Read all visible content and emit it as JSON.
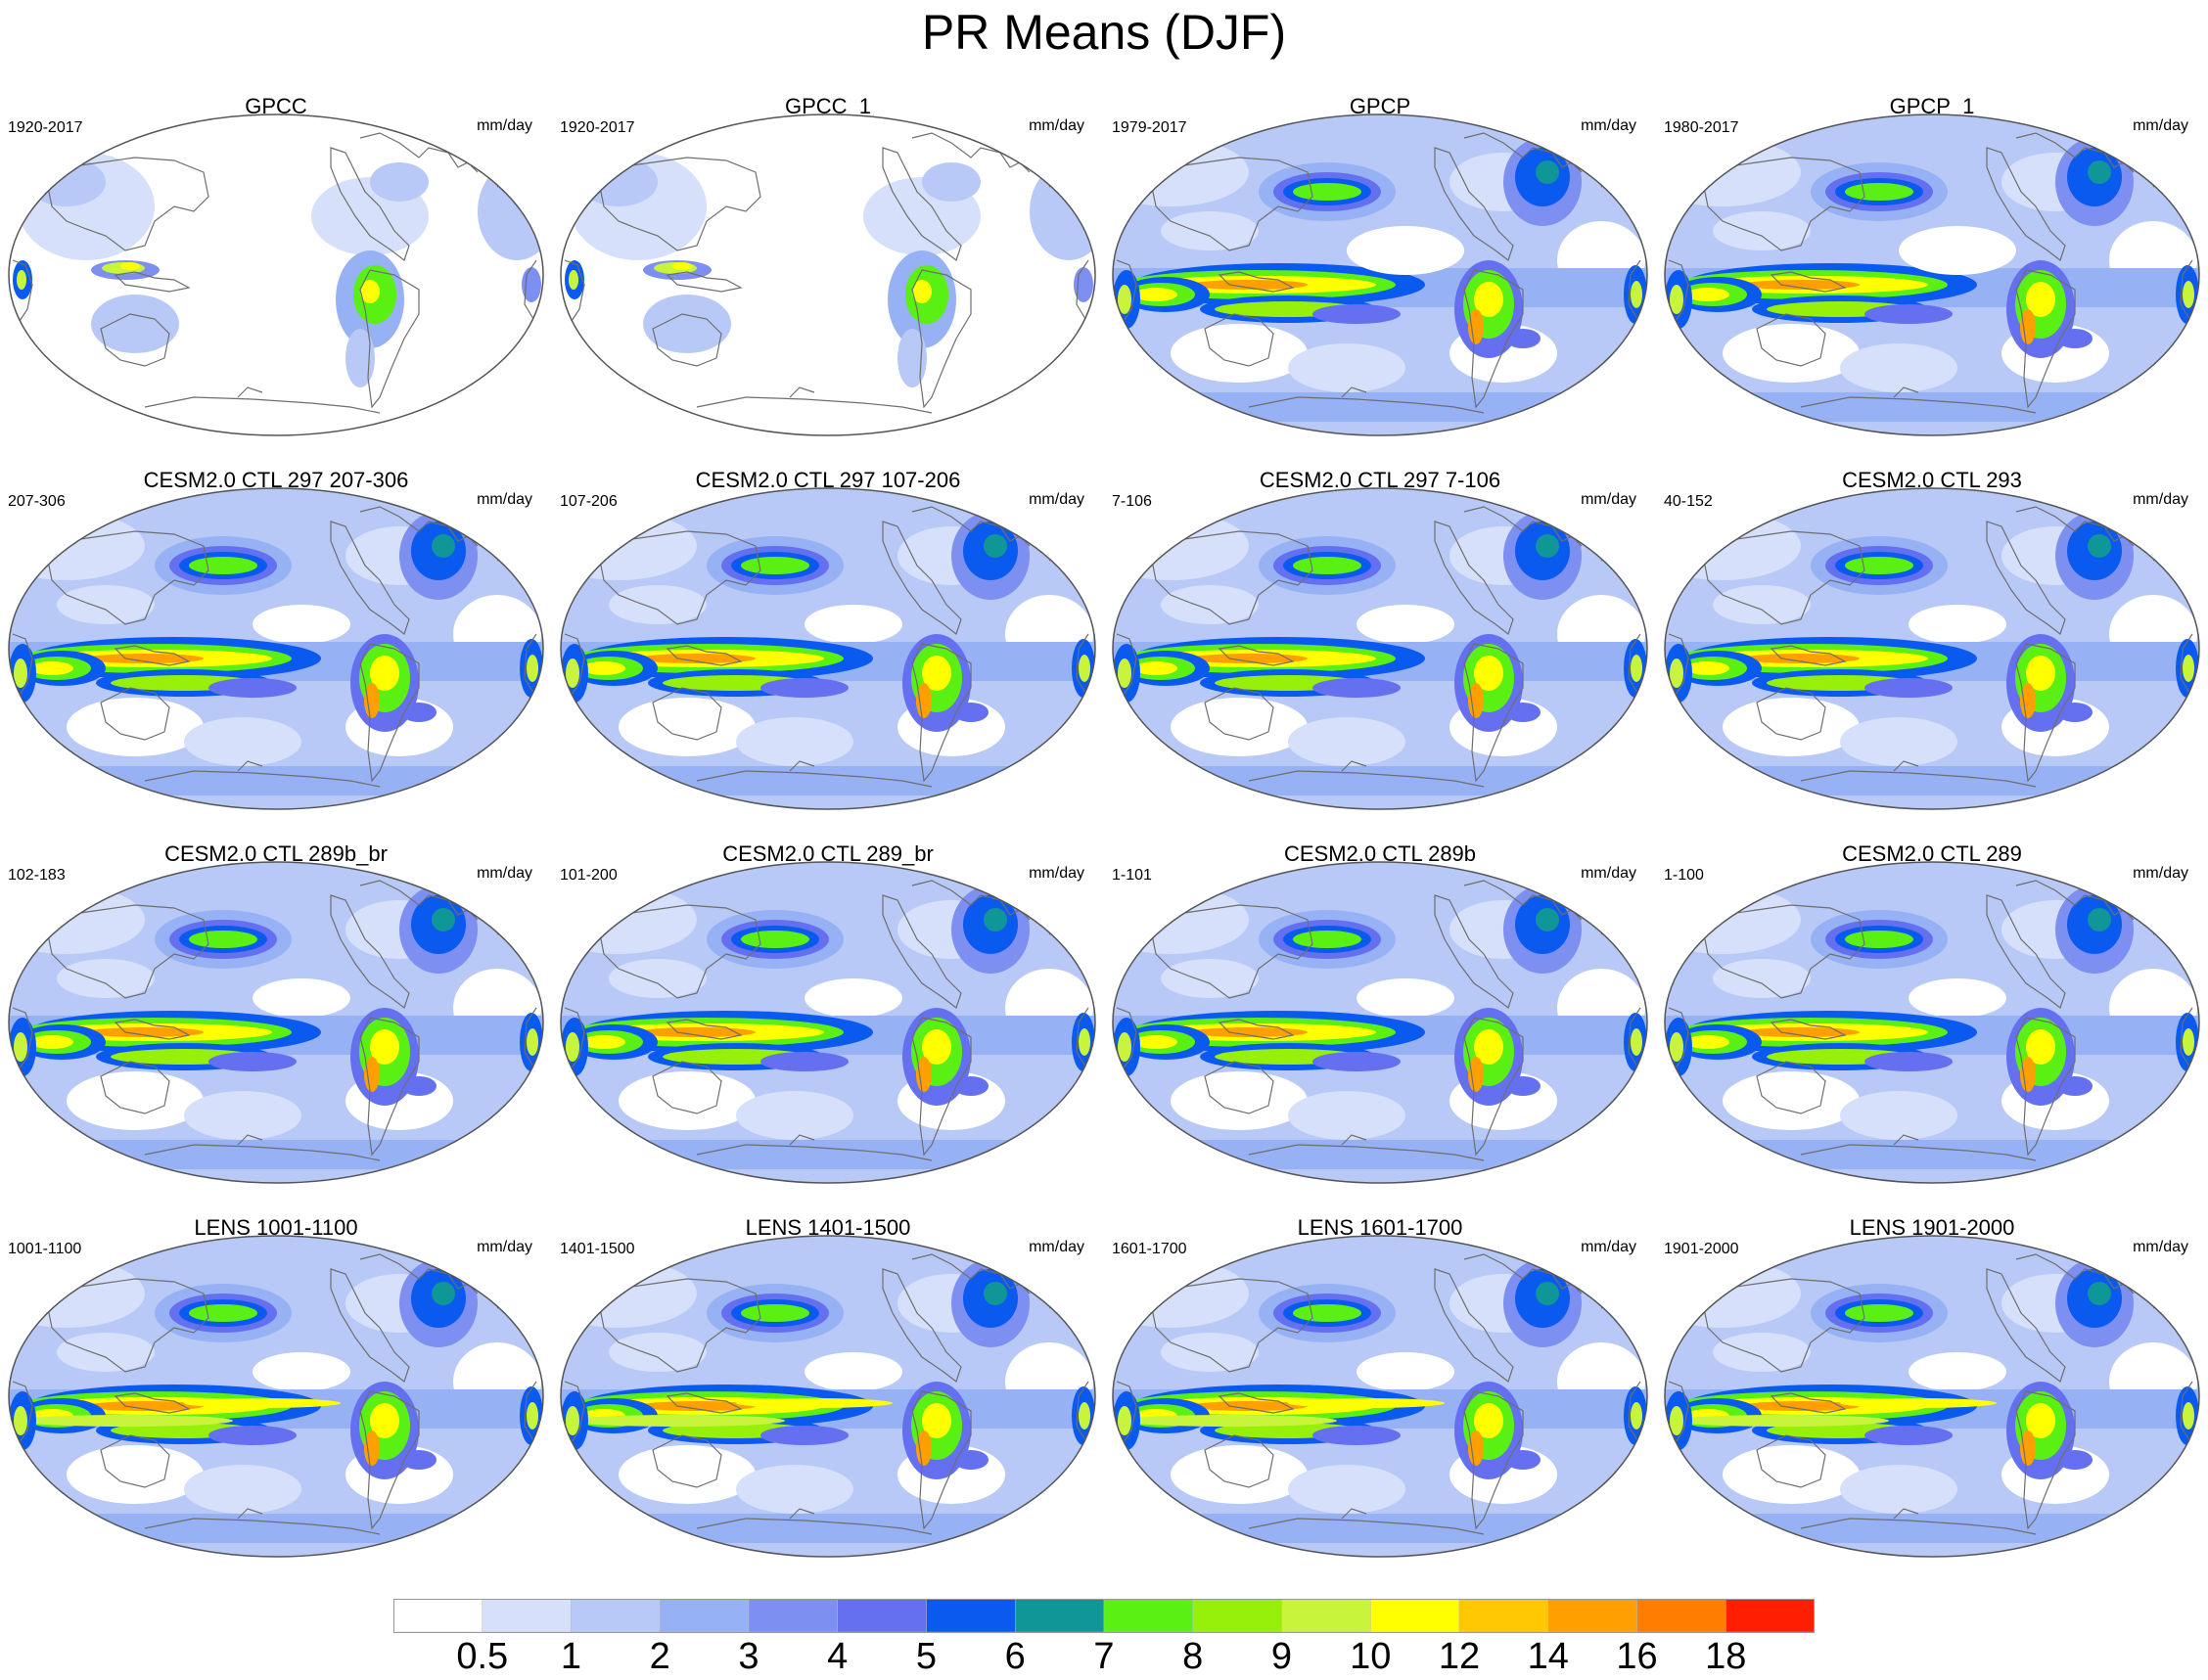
{
  "title": "PR Means (DJF)",
  "panels": [
    {
      "title": "GPCC",
      "left": "1920-2017",
      "right": "mm/day",
      "type": "obs"
    },
    {
      "title": "GPCC_1",
      "left": "1920-2017",
      "right": "mm/day",
      "type": "obs"
    },
    {
      "title": "GPCP",
      "left": "1979-2017",
      "right": "mm/day",
      "type": "sat"
    },
    {
      "title": "GPCP_1",
      "left": "1980-2017",
      "right": "mm/day",
      "type": "sat"
    },
    {
      "title": "CESM2.0 CTL 297 207-306",
      "left": "207-306",
      "right": "mm/day",
      "type": "model"
    },
    {
      "title": "CESM2.0 CTL 297 107-206",
      "left": "107-206",
      "right": "mm/day",
      "type": "model"
    },
    {
      "title": "CESM2.0 CTL 297 7-106",
      "left": "7-106",
      "right": "mm/day",
      "type": "model"
    },
    {
      "title": "CESM2.0 CTL 293",
      "left": "40-152",
      "right": "mm/day",
      "type": "model"
    },
    {
      "title": "CESM2.0 CTL 289b_br",
      "left": "102-183",
      "right": "mm/day",
      "type": "model"
    },
    {
      "title": "CESM2.0 CTL 289_br",
      "left": "101-200",
      "right": "mm/day",
      "type": "model"
    },
    {
      "title": "CESM2.0 CTL 289b",
      "left": "1-101",
      "right": "mm/day",
      "type": "model"
    },
    {
      "title": "CESM2.0 CTL 289",
      "left": "1-100",
      "right": "mm/day",
      "type": "model"
    },
    {
      "title": "LENS 1001-1100",
      "left": "1001-1100",
      "right": "mm/day",
      "type": "lens"
    },
    {
      "title": "LENS 1401-1500",
      "left": "1401-1500",
      "right": "mm/day",
      "type": "lens"
    },
    {
      "title": "LENS 1601-1700",
      "left": "1601-1700",
      "right": "mm/day",
      "type": "lens"
    },
    {
      "title": "LENS 1901-2000",
      "left": "1901-2000",
      "right": "mm/day",
      "type": "lens"
    }
  ],
  "colorbar": {
    "levels": [
      "0.5",
      "1",
      "2",
      "3",
      "4",
      "5",
      "6",
      "7",
      "8",
      "9",
      "10",
      "12",
      "14",
      "16",
      "18"
    ],
    "colors": [
      "#ffffff",
      "#d6e0fa",
      "#b8c9f7",
      "#97b1f5",
      "#7d8ff0",
      "#6470f0",
      "#0a5af0",
      "#0f9696",
      "#5af014",
      "#96f00a",
      "#c8f53c",
      "#ffff00",
      "#ffc800",
      "#ffa000",
      "#ff7d00",
      "#ff1e00"
    ]
  }
}
